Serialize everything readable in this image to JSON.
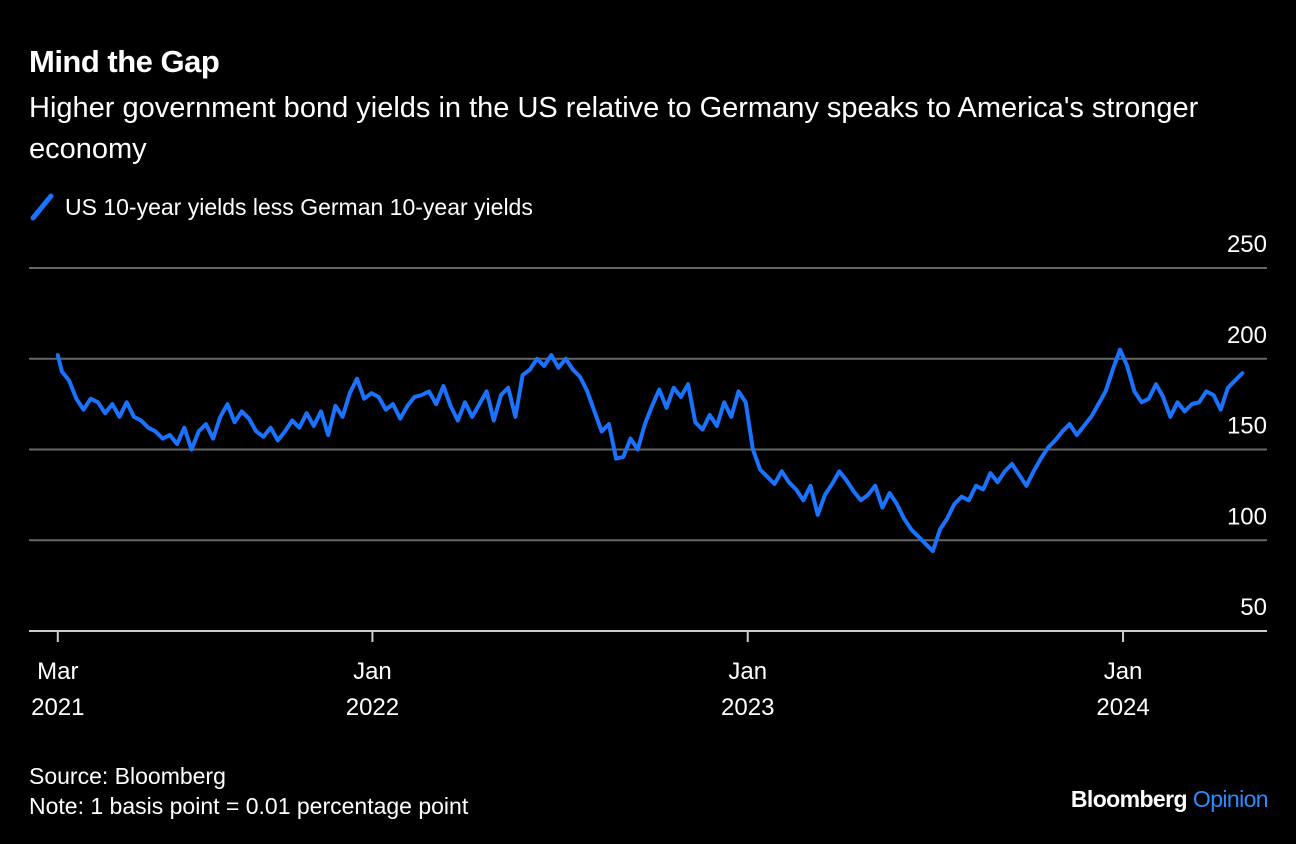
{
  "header": {
    "title": "Mind the Gap",
    "subtitle": "Higher government bond yields in the US relative to Germany speaks to America's stronger economy"
  },
  "footer": {
    "source": "Source: Bloomberg",
    "note": "Note: 1 basis point = 0.01 percentage point",
    "brand_name": "Bloomberg",
    "brand_section": "Opinion"
  },
  "colors": {
    "background": "#000000",
    "series": "#1a73ff",
    "grid": "#666666",
    "brand_accent": "#2b8cff"
  },
  "chart_data": {
    "type": "line",
    "title": "Mind the Gap",
    "subtitle": "Higher government bond yields in the US relative to Germany speaks to America's stronger economy",
    "xlabel": "",
    "ylabel": "",
    "ylim": [
      50,
      250
    ],
    "y_ticks": [
      50,
      100,
      150,
      200,
      250
    ],
    "xlim": [
      "2021-02-01",
      "2024-05-20"
    ],
    "x_ticks": [
      {
        "date": "2021-03-01",
        "month": "Mar",
        "year": "2021"
      },
      {
        "date": "2022-01-01",
        "month": "Jan",
        "year": "2022"
      },
      {
        "date": "2023-01-01",
        "month": "Jan",
        "year": "2023"
      },
      {
        "date": "2024-01-01",
        "month": "Jan",
        "year": "2024"
      }
    ],
    "grid": true,
    "legend_position": "top-left",
    "series": [
      {
        "name": "US 10-year yields less German 10-year yields",
        "color": "#1a73ff",
        "points": [
          [
            "2021-03-01",
            202
          ],
          [
            "2021-03-05",
            193
          ],
          [
            "2021-03-12",
            188
          ],
          [
            "2021-03-19",
            178
          ],
          [
            "2021-03-26",
            172
          ],
          [
            "2021-04-02",
            178
          ],
          [
            "2021-04-09",
            176
          ],
          [
            "2021-04-16",
            170
          ],
          [
            "2021-04-23",
            175
          ],
          [
            "2021-04-30",
            168
          ],
          [
            "2021-05-07",
            176
          ],
          [
            "2021-05-14",
            168
          ],
          [
            "2021-05-21",
            166
          ],
          [
            "2021-05-28",
            162
          ],
          [
            "2021-06-04",
            160
          ],
          [
            "2021-06-11",
            156
          ],
          [
            "2021-06-18",
            158
          ],
          [
            "2021-06-25",
            153
          ],
          [
            "2021-07-02",
            162
          ],
          [
            "2021-07-09",
            150
          ],
          [
            "2021-07-16",
            160
          ],
          [
            "2021-07-23",
            164
          ],
          [
            "2021-07-30",
            156
          ],
          [
            "2021-08-06",
            168
          ],
          [
            "2021-08-13",
            175
          ],
          [
            "2021-08-20",
            165
          ],
          [
            "2021-08-27",
            171
          ],
          [
            "2021-09-03",
            167
          ],
          [
            "2021-09-10",
            160
          ],
          [
            "2021-09-17",
            157
          ],
          [
            "2021-09-24",
            162
          ],
          [
            "2021-10-01",
            155
          ],
          [
            "2021-10-08",
            160
          ],
          [
            "2021-10-15",
            166
          ],
          [
            "2021-10-22",
            162
          ],
          [
            "2021-10-29",
            170
          ],
          [
            "2021-11-05",
            163
          ],
          [
            "2021-11-12",
            171
          ],
          [
            "2021-11-19",
            158
          ],
          [
            "2021-11-26",
            174
          ],
          [
            "2021-12-03",
            168
          ],
          [
            "2021-12-10",
            181
          ],
          [
            "2021-12-17",
            189
          ],
          [
            "2021-12-24",
            178
          ],
          [
            "2021-12-31",
            181
          ],
          [
            "2022-01-07",
            179
          ],
          [
            "2022-01-14",
            172
          ],
          [
            "2022-01-21",
            175
          ],
          [
            "2022-01-28",
            167
          ],
          [
            "2022-02-04",
            174
          ],
          [
            "2022-02-11",
            179
          ],
          [
            "2022-02-18",
            180
          ],
          [
            "2022-02-25",
            182
          ],
          [
            "2022-03-04",
            175
          ],
          [
            "2022-03-11",
            185
          ],
          [
            "2022-03-18",
            174
          ],
          [
            "2022-03-25",
            166
          ],
          [
            "2022-04-01",
            176
          ],
          [
            "2022-04-08",
            168
          ],
          [
            "2022-04-15",
            175
          ],
          [
            "2022-04-22",
            182
          ],
          [
            "2022-04-29",
            166
          ],
          [
            "2022-05-06",
            180
          ],
          [
            "2022-05-13",
            184
          ],
          [
            "2022-05-20",
            168
          ],
          [
            "2022-05-27",
            191
          ],
          [
            "2022-06-03",
            194
          ],
          [
            "2022-06-10",
            200
          ],
          [
            "2022-06-17",
            196
          ],
          [
            "2022-06-24",
            202
          ],
          [
            "2022-07-01",
            195
          ],
          [
            "2022-07-08",
            200
          ],
          [
            "2022-07-15",
            194
          ],
          [
            "2022-07-22",
            190
          ],
          [
            "2022-07-29",
            182
          ],
          [
            "2022-08-05",
            171
          ],
          [
            "2022-08-12",
            160
          ],
          [
            "2022-08-19",
            164
          ],
          [
            "2022-08-26",
            145
          ],
          [
            "2022-09-02",
            146
          ],
          [
            "2022-09-09",
            156
          ],
          [
            "2022-09-16",
            150
          ],
          [
            "2022-09-23",
            164
          ],
          [
            "2022-09-30",
            174
          ],
          [
            "2022-10-07",
            183
          ],
          [
            "2022-10-14",
            173
          ],
          [
            "2022-10-21",
            184
          ],
          [
            "2022-10-28",
            179
          ],
          [
            "2022-11-04",
            186
          ],
          [
            "2022-11-11",
            165
          ],
          [
            "2022-11-18",
            161
          ],
          [
            "2022-11-25",
            169
          ],
          [
            "2022-12-02",
            163
          ],
          [
            "2022-12-09",
            176
          ],
          [
            "2022-12-16",
            168
          ],
          [
            "2022-12-23",
            182
          ],
          [
            "2022-12-30",
            176
          ],
          [
            "2023-01-06",
            150
          ],
          [
            "2023-01-13",
            139
          ],
          [
            "2023-01-20",
            135
          ],
          [
            "2023-01-27",
            131
          ],
          [
            "2023-02-03",
            138
          ],
          [
            "2023-02-10",
            132
          ],
          [
            "2023-02-17",
            128
          ],
          [
            "2023-02-24",
            122
          ],
          [
            "2023-03-03",
            130
          ],
          [
            "2023-03-10",
            114
          ],
          [
            "2023-03-17",
            125
          ],
          [
            "2023-03-24",
            131
          ],
          [
            "2023-03-31",
            138
          ],
          [
            "2023-04-07",
            133
          ],
          [
            "2023-04-14",
            127
          ],
          [
            "2023-04-21",
            122
          ],
          [
            "2023-04-28",
            125
          ],
          [
            "2023-05-05",
            130
          ],
          [
            "2023-05-12",
            118
          ],
          [
            "2023-05-19",
            126
          ],
          [
            "2023-05-26",
            120
          ],
          [
            "2023-06-02",
            112
          ],
          [
            "2023-06-09",
            106
          ],
          [
            "2023-06-16",
            102
          ],
          [
            "2023-06-23",
            98
          ],
          [
            "2023-06-30",
            94
          ],
          [
            "2023-07-07",
            106
          ],
          [
            "2023-07-14",
            112
          ],
          [
            "2023-07-21",
            120
          ],
          [
            "2023-07-28",
            124
          ],
          [
            "2023-08-04",
            122
          ],
          [
            "2023-08-11",
            130
          ],
          [
            "2023-08-18",
            128
          ],
          [
            "2023-08-25",
            137
          ],
          [
            "2023-09-01",
            132
          ],
          [
            "2023-09-08",
            138
          ],
          [
            "2023-09-15",
            142
          ],
          [
            "2023-09-22",
            136
          ],
          [
            "2023-09-29",
            130
          ],
          [
            "2023-10-06",
            138
          ],
          [
            "2023-10-13",
            145
          ],
          [
            "2023-10-20",
            151
          ],
          [
            "2023-10-27",
            155
          ],
          [
            "2023-11-03",
            160
          ],
          [
            "2023-11-10",
            164
          ],
          [
            "2023-11-17",
            158
          ],
          [
            "2023-11-24",
            163
          ],
          [
            "2023-12-01",
            168
          ],
          [
            "2023-12-08",
            175
          ],
          [
            "2023-12-15",
            182
          ],
          [
            "2023-12-22",
            194
          ],
          [
            "2023-12-29",
            205
          ],
          [
            "2024-01-05",
            196
          ],
          [
            "2024-01-12",
            182
          ],
          [
            "2024-01-19",
            176
          ],
          [
            "2024-01-26",
            178
          ],
          [
            "2024-02-02",
            186
          ],
          [
            "2024-02-09",
            179
          ],
          [
            "2024-02-16",
            168
          ],
          [
            "2024-02-23",
            176
          ],
          [
            "2024-03-01",
            171
          ],
          [
            "2024-03-08",
            175
          ],
          [
            "2024-03-15",
            176
          ],
          [
            "2024-03-22",
            182
          ],
          [
            "2024-03-29",
            180
          ],
          [
            "2024-04-05",
            172
          ],
          [
            "2024-04-12",
            184
          ],
          [
            "2024-04-19",
            188
          ],
          [
            "2024-04-26",
            192
          ]
        ]
      }
    ]
  }
}
